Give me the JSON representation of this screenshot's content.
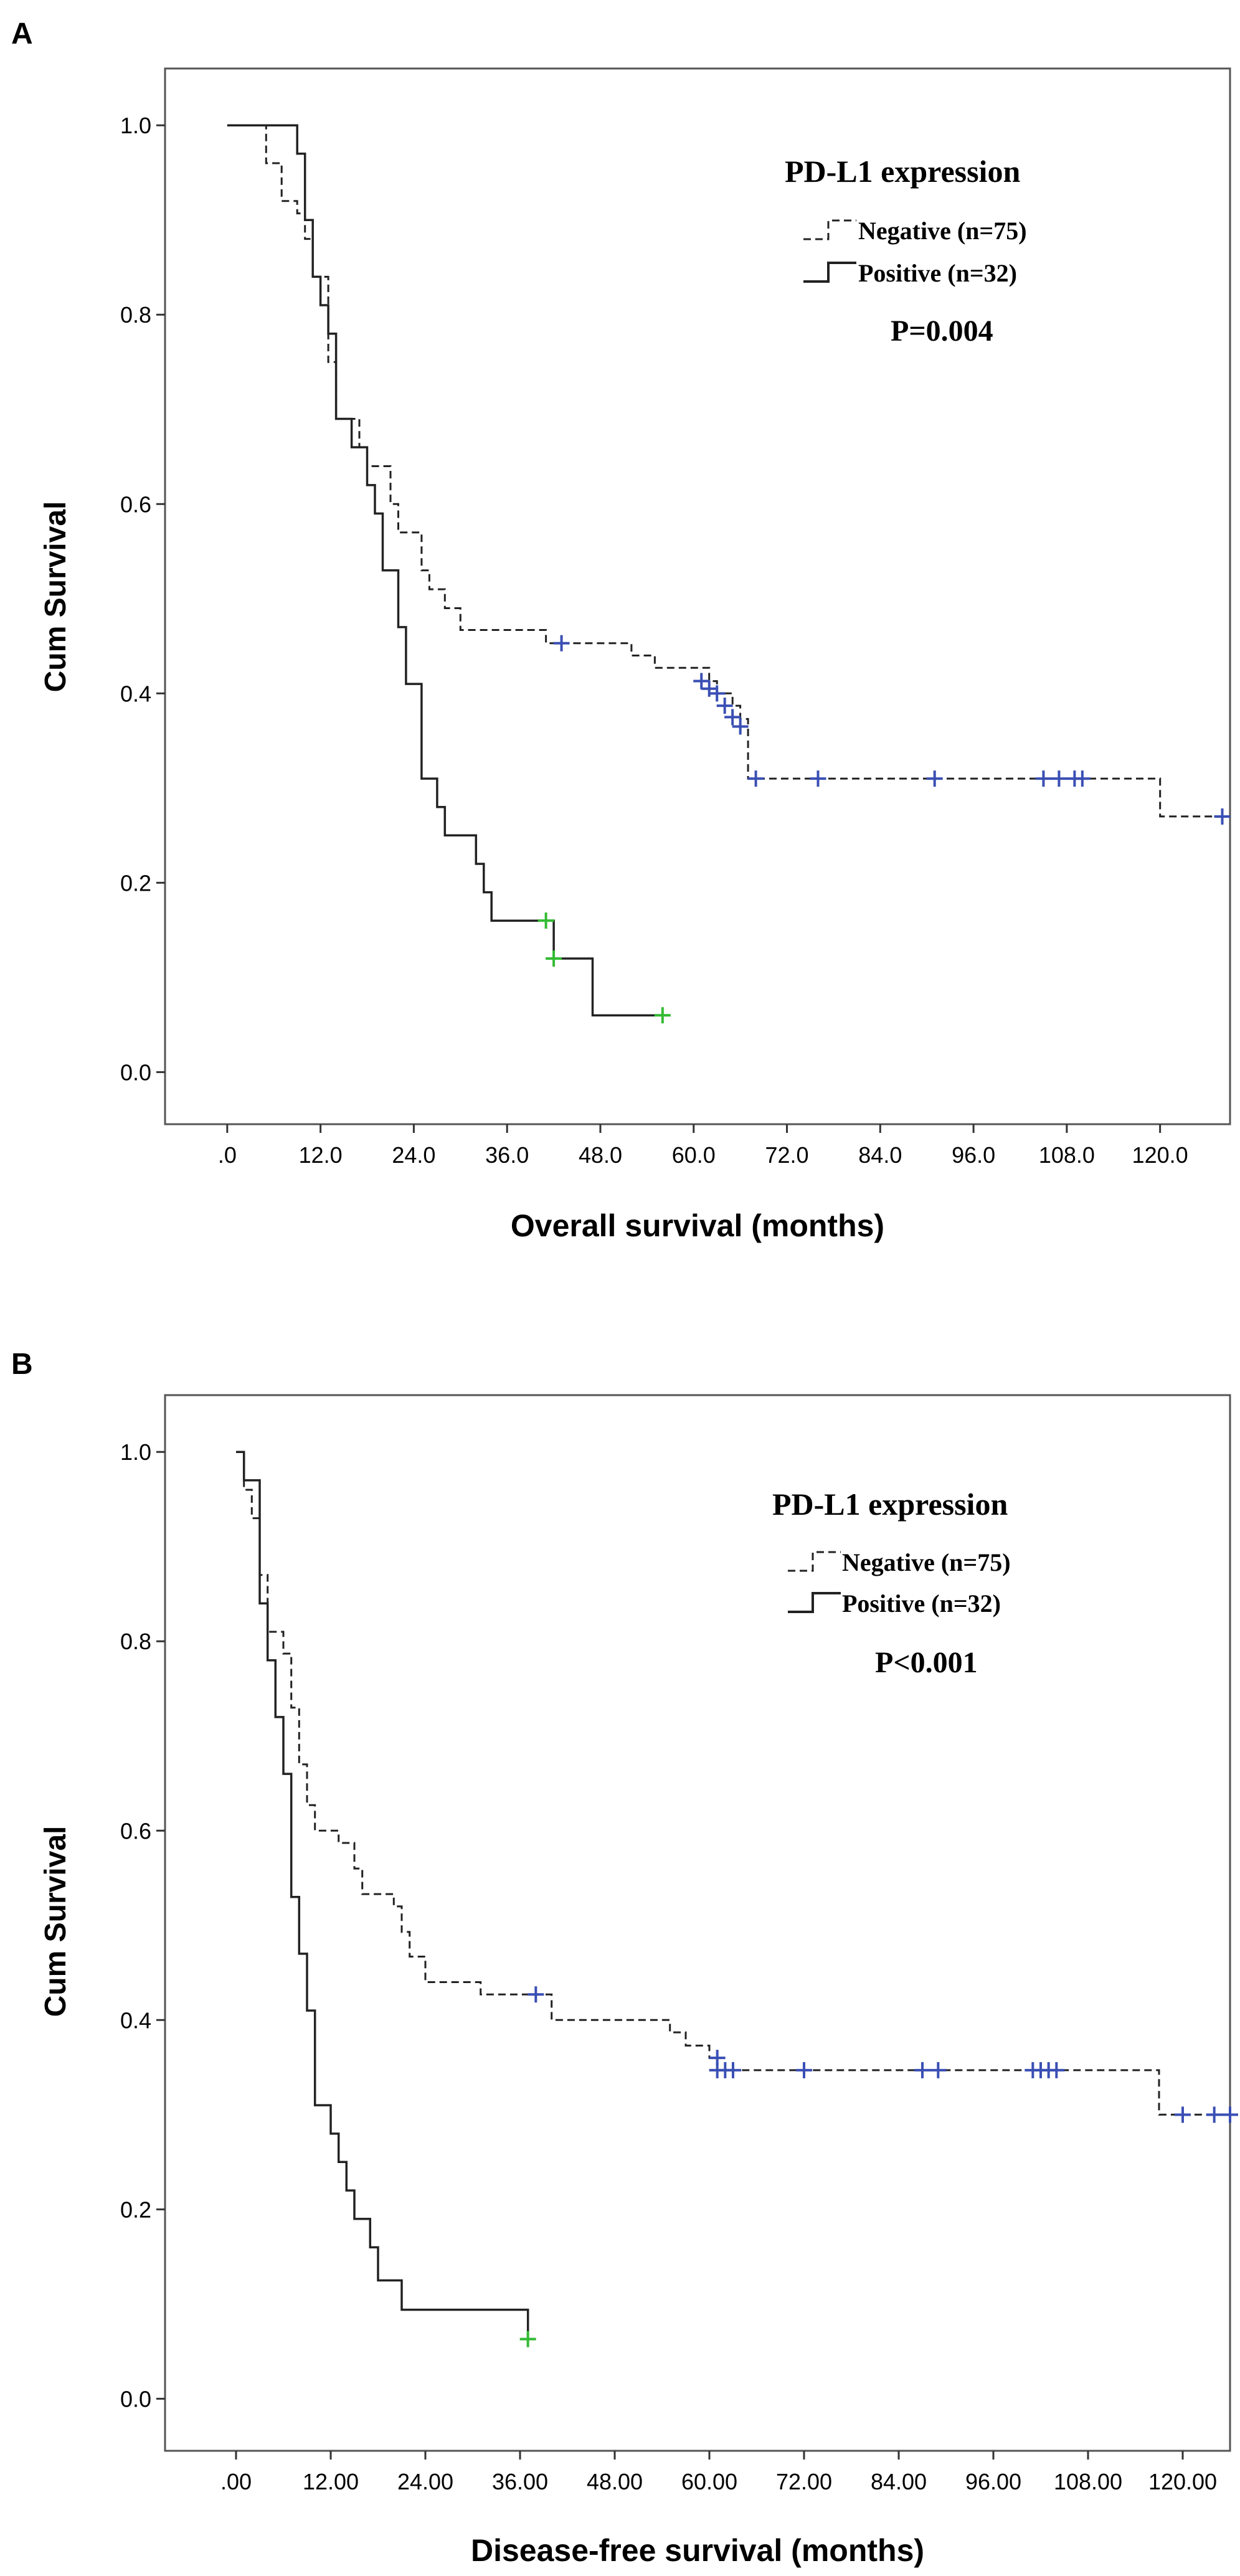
{
  "chart_data": [
    {
      "type": "line",
      "panel_label": "A",
      "title": "",
      "xlabel": "Overall survival (months)",
      "ylabel": "Cum Survival",
      "xlim": [
        -8,
        129
      ],
      "ylim": [
        -0.055,
        1.06
      ],
      "x_ticks": [
        0,
        12,
        24,
        36,
        48,
        60,
        72,
        84,
        96,
        108,
        120
      ],
      "x_tick_labels": [
        ".0",
        "12.0",
        "24.0",
        "36.0",
        "48.0",
        "60.0",
        "72.0",
        "84.0",
        "96.0",
        "108.0",
        "120.0"
      ],
      "y_ticks": [
        0,
        0.2,
        0.4,
        0.6,
        0.8,
        1.0
      ],
      "y_tick_labels": [
        "0.0",
        "0.2",
        "0.4",
        "0.6",
        "0.8",
        "1.0"
      ],
      "grid": false,
      "legend": {
        "title": "PD-L1 expression",
        "placement": "top-right",
        "entries": [
          "Negative (n=75)",
          "Positive (n=32)"
        ]
      },
      "p_value": "P=0.004",
      "series": [
        {
          "name": "Negative (n=75)",
          "style": "dashed",
          "color": "#222222",
          "censor_color": "#3a4fb4",
          "steps": [
            [
              0,
              1.0
            ],
            [
              5,
              0.96
            ],
            [
              7,
              0.92
            ],
            [
              9,
              0.907
            ],
            [
              10,
              0.88
            ],
            [
              11,
              0.84
            ],
            [
              13,
              0.75
            ],
            [
              14,
              0.69
            ],
            [
              17,
              0.66
            ],
            [
              18,
              0.64
            ],
            [
              21,
              0.6
            ],
            [
              22,
              0.57
            ],
            [
              25,
              0.53
            ],
            [
              26,
              0.51
            ],
            [
              28,
              0.49
            ],
            [
              30,
              0.467
            ],
            [
              41,
              0.453
            ],
            [
              52,
              0.44
            ],
            [
              55,
              0.427
            ],
            [
              62,
              0.413
            ],
            [
              63,
              0.4
            ],
            [
              65,
              0.387
            ],
            [
              66,
              0.373
            ],
            [
              67,
              0.31
            ],
            [
              119,
              0.31
            ],
            [
              120,
              0.27
            ],
            [
              128,
              0.27
            ]
          ],
          "censored": [
            [
              43,
              0.453
            ],
            [
              61,
              0.413
            ],
            [
              62,
              0.405
            ],
            [
              63,
              0.4
            ],
            [
              64,
              0.387
            ],
            [
              65,
              0.375
            ],
            [
              66,
              0.365
            ],
            [
              68,
              0.31
            ],
            [
              76,
              0.31
            ],
            [
              91,
              0.31
            ],
            [
              105,
              0.31
            ],
            [
              107,
              0.31
            ],
            [
              109,
              0.31
            ],
            [
              110,
              0.31
            ],
            [
              128,
              0.27
            ]
          ]
        },
        {
          "name": "Positive (n=32)",
          "style": "solid",
          "color": "#222222",
          "censor_color": "#33bb33",
          "steps": [
            [
              0,
              1.0
            ],
            [
              8,
              1.0
            ],
            [
              9,
              0.97
            ],
            [
              10,
              0.9
            ],
            [
              11,
              0.84
            ],
            [
              12,
              0.81
            ],
            [
              13,
              0.78
            ],
            [
              14,
              0.69
            ],
            [
              15,
              0.69
            ],
            [
              16,
              0.66
            ],
            [
              18,
              0.62
            ],
            [
              19,
              0.59
            ],
            [
              20,
              0.53
            ],
            [
              21,
              0.53
            ],
            [
              22,
              0.47
            ],
            [
              23,
              0.41
            ],
            [
              25,
              0.31
            ],
            [
              27,
              0.28
            ],
            [
              28,
              0.25
            ],
            [
              32,
              0.22
            ],
            [
              33,
              0.19
            ],
            [
              34,
              0.16
            ],
            [
              41,
              0.16
            ],
            [
              42,
              0.12
            ],
            [
              46,
              0.12
            ],
            [
              47,
              0.06
            ],
            [
              56,
              0.06
            ]
          ],
          "censored": [
            [
              41,
              0.16
            ],
            [
              42,
              0.12
            ],
            [
              56,
              0.06
            ]
          ]
        }
      ]
    },
    {
      "type": "line",
      "panel_label": "B",
      "title": "",
      "xlabel": "Disease-free survival (months)",
      "ylabel": "Cum Survival",
      "xlim": [
        -9,
        126
      ],
      "ylim": [
        -0.055,
        1.06
      ],
      "x_ticks": [
        0,
        12,
        24,
        36,
        48,
        60,
        72,
        84,
        96,
        108,
        120
      ],
      "x_tick_labels": [
        ".00",
        "12.00",
        "24.00",
        "36.00",
        "48.00",
        "60.00",
        "72.00",
        "84.00",
        "96.00",
        "108.00",
        "120.00"
      ],
      "y_ticks": [
        0,
        0.2,
        0.4,
        0.6,
        0.8,
        1.0
      ],
      "y_tick_labels": [
        "0.0",
        "0.2",
        "0.4",
        "0.6",
        "0.8",
        "1.0"
      ],
      "grid": false,
      "legend": {
        "title": "PD-L1 expression",
        "placement": "top-right",
        "entries": [
          "Negative (n=75)",
          "Positive (n=32)"
        ]
      },
      "p_value": "P<0.001",
      "series": [
        {
          "name": "Negative (n=75)",
          "style": "dashed",
          "color": "#222222",
          "censor_color": "#3a4fb4",
          "steps": [
            [
              0,
              1.0
            ],
            [
              1,
              0.96
            ],
            [
              2,
              0.93
            ],
            [
              3,
              0.87
            ],
            [
              4,
              0.81
            ],
            [
              6,
              0.787
            ],
            [
              7,
              0.73
            ],
            [
              8,
              0.67
            ],
            [
              9,
              0.627
            ],
            [
              10,
              0.6
            ],
            [
              13,
              0.587
            ],
            [
              15,
              0.56
            ],
            [
              16,
              0.533
            ],
            [
              20,
              0.52
            ],
            [
              21,
              0.493
            ],
            [
              22,
              0.467
            ],
            [
              24,
              0.44
            ],
            [
              31,
              0.427
            ],
            [
              40,
              0.4
            ],
            [
              55,
              0.387
            ],
            [
              57,
              0.373
            ],
            [
              60,
              0.36
            ],
            [
              61,
              0.347
            ],
            [
              116,
              0.347
            ],
            [
              117,
              0.3
            ],
            [
              126,
              0.3
            ]
          ],
          "censored": [
            [
              38,
              0.427
            ],
            [
              61,
              0.36
            ],
            [
              61,
              0.347
            ],
            [
              62,
              0.347
            ],
            [
              63,
              0.347
            ],
            [
              72,
              0.347
            ],
            [
              87,
              0.347
            ],
            [
              89,
              0.347
            ],
            [
              101,
              0.347
            ],
            [
              102,
              0.347
            ],
            [
              103,
              0.347
            ],
            [
              104,
              0.347
            ],
            [
              120,
              0.3
            ],
            [
              124,
              0.3
            ],
            [
              126,
              0.3
            ]
          ]
        },
        {
          "name": "Positive (n=32)",
          "style": "solid",
          "color": "#222222",
          "censor_color": "#33bb33",
          "steps": [
            [
              0,
              1.0
            ],
            [
              1,
              0.97
            ],
            [
              3,
              0.84
            ],
            [
              4,
              0.78
            ],
            [
              5,
              0.72
            ],
            [
              6,
              0.66
            ],
            [
              7,
              0.53
            ],
            [
              8,
              0.47
            ],
            [
              9,
              0.41
            ],
            [
              10,
              0.31
            ],
            [
              12,
              0.28
            ],
            [
              13,
              0.25
            ],
            [
              14,
              0.22
            ],
            [
              15,
              0.19
            ],
            [
              17,
              0.16
            ],
            [
              18,
              0.125
            ],
            [
              21,
              0.094
            ],
            [
              36,
              0.094
            ],
            [
              37,
              0.063
            ],
            [
              38,
              0.063
            ]
          ],
          "censored": [
            [
              37,
              0.063
            ]
          ]
        }
      ]
    }
  ]
}
